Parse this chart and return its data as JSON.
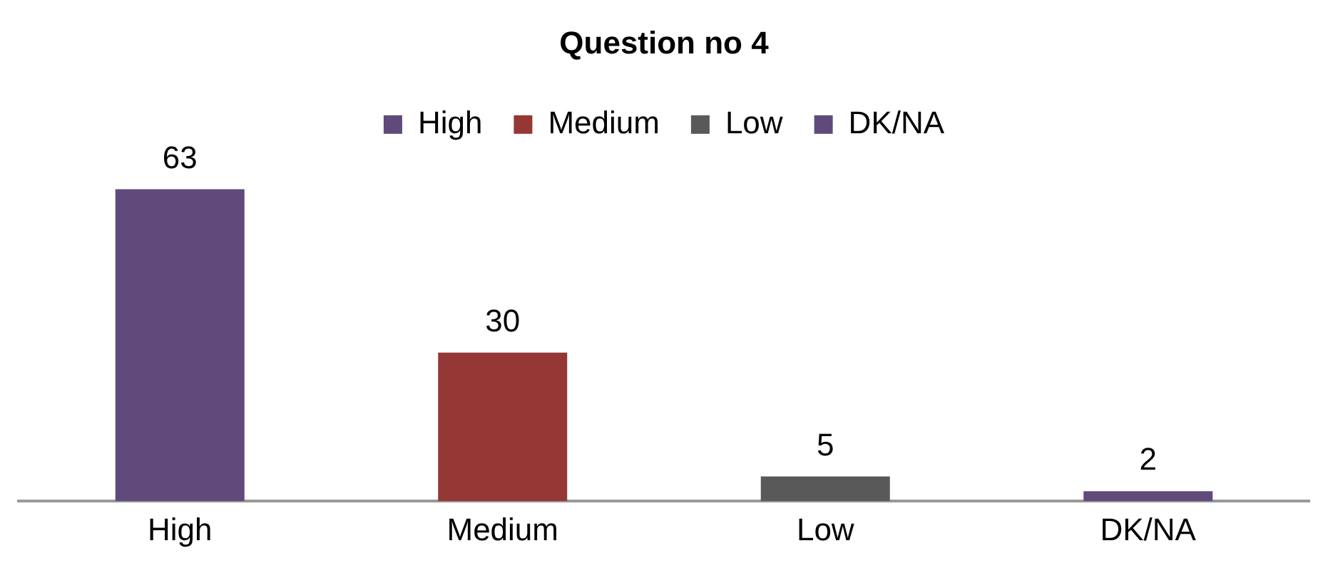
{
  "chart_data": {
    "type": "bar",
    "title": "Question no 4",
    "categories": [
      "High",
      "Medium",
      "Low",
      "DK/NA"
    ],
    "series": [
      {
        "name": "High",
        "color": "#604a7b",
        "values": [
          63,
          null,
          null,
          null
        ]
      },
      {
        "name": "Medium",
        "color": "#953735",
        "values": [
          null,
          30,
          null,
          null
        ]
      },
      {
        "name": "Low",
        "color": "#595959",
        "values": [
          null,
          null,
          5,
          null
        ]
      },
      {
        "name": "DK/NA",
        "color": "#604a7b",
        "values": [
          null,
          null,
          null,
          2
        ]
      }
    ],
    "data_labels": true,
    "legend": "top",
    "grid": false
  }
}
